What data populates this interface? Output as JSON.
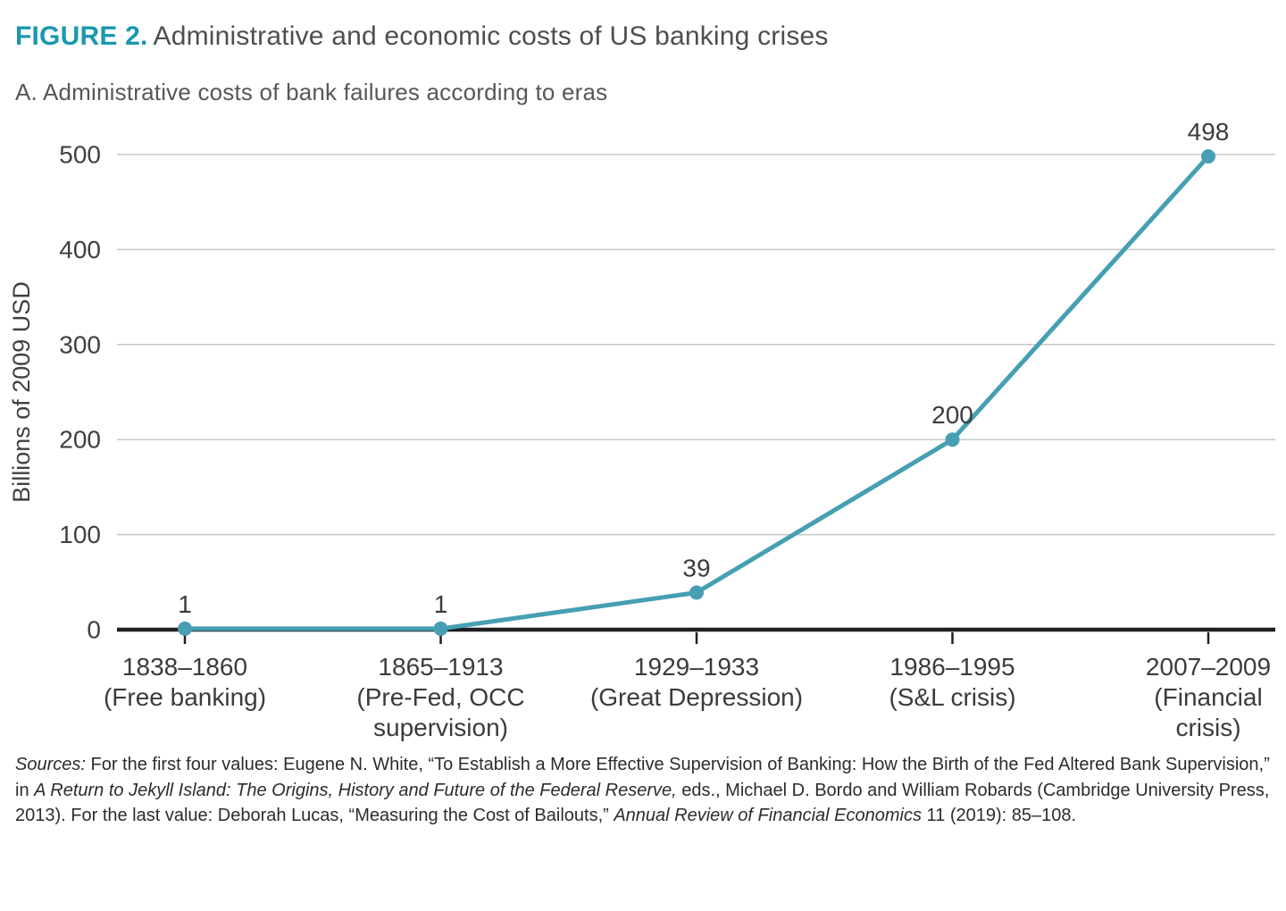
{
  "header": {
    "figure_label": "FIGURE 2.",
    "title": "Administrative and economic costs of US banking crises",
    "panel_title": "A. Administrative costs of bank failures according to eras"
  },
  "colors": {
    "figure_label_teal": "#1B98B0",
    "series_teal": "#469FB2",
    "axis_black": "#1E1F21",
    "gridline_gray": "#C7C8CA",
    "tick_text_gray": "#3F4042"
  },
  "chart_data": {
    "type": "line",
    "title": "A. Administrative costs of bank failures according to eras",
    "ylabel": "Billions of 2009 USD",
    "xlabel": "",
    "ylim": [
      0,
      500
    ],
    "yticks": [
      0,
      100,
      200,
      300,
      400,
      500
    ],
    "grid": "horizontal-only",
    "legend": "none",
    "categories": [
      {
        "lines": [
          "1838–1860",
          "(Free banking)"
        ]
      },
      {
        "lines": [
          "1865–1913",
          "(Pre-Fed, OCC",
          "supervision)"
        ]
      },
      {
        "lines": [
          "1929–1933",
          "(Great Depression)"
        ]
      },
      {
        "lines": [
          "1986–1995",
          "(S&L crisis)"
        ]
      },
      {
        "lines": [
          "2007–2009",
          "(Financial",
          "crisis)"
        ]
      }
    ],
    "series": [
      {
        "name": "Administrative costs",
        "values": [
          1,
          1,
          39,
          200,
          498
        ],
        "point_labels": [
          "1",
          "1",
          "39",
          "200",
          "498"
        ]
      }
    ]
  },
  "sources": {
    "segments": [
      {
        "text": "Sources:",
        "italic": true
      },
      {
        "text": " For the first four values: Eugene N. White, “To Establish a More Effective Supervision of Banking: How the Birth of the Fed Altered Bank Supervision,” in ",
        "italic": false
      },
      {
        "text": "A Return to Jekyll Island: The Origins, History and Future of the Federal Reserve,",
        "italic": true
      },
      {
        "text": " eds., Michael D. Bordo and William Robards (Cambridge University Press, 2013). For the last value: Deborah Lucas, “Measuring the Cost of Bailouts,” ",
        "italic": false
      },
      {
        "text": "Annual Review of Financial Economics",
        "italic": true
      },
      {
        "text": " 11 (2019): 85–108.",
        "italic": false
      }
    ]
  }
}
